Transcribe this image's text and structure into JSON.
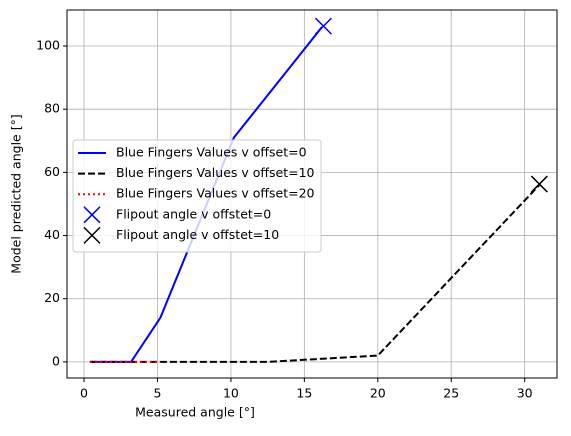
{
  "chart_data": {
    "type": "line",
    "x_label": "Measured angle [°]",
    "y_label": "Model predicted angle [°]",
    "xlim": [
      -1.16,
      32.2
    ],
    "ylim": [
      -5.1,
      111.4
    ],
    "xticks": [
      0,
      5,
      10,
      15,
      20,
      25,
      30
    ],
    "yticks": [
      0,
      20,
      40,
      60,
      80,
      100
    ],
    "grid": true,
    "legend": "center left",
    "series": [
      {
        "name": "Blue Fingers Values v offset=0",
        "color": "#0000ff",
        "style": "solid",
        "x": [
          0.4,
          3.2,
          5.2,
          10.2,
          16.2
        ],
        "values": [
          0,
          0,
          14,
          71,
          106
        ]
      },
      {
        "name": "Blue Fingers Values v offset=10",
        "color": "#000000",
        "style": "dashed",
        "x": [
          0.4,
          12.5,
          20,
          31
        ],
        "values": [
          0,
          0,
          2,
          56
        ]
      },
      {
        "name": "Blue Fingers Values v offset=20",
        "color": "#ff0000",
        "style": "dotted",
        "x": [
          0.4,
          5.2
        ],
        "values": [
          0,
          0
        ]
      },
      {
        "name": "Flipout angle v offstet=0",
        "color": "#0000ff",
        "style": "marker",
        "x": [
          16.3
        ],
        "values": [
          106.3
        ]
      },
      {
        "name": "Flipout angle v offstet=10",
        "color": "#000000",
        "style": "marker",
        "x": [
          31.0
        ],
        "values": [
          56.3
        ]
      }
    ]
  }
}
